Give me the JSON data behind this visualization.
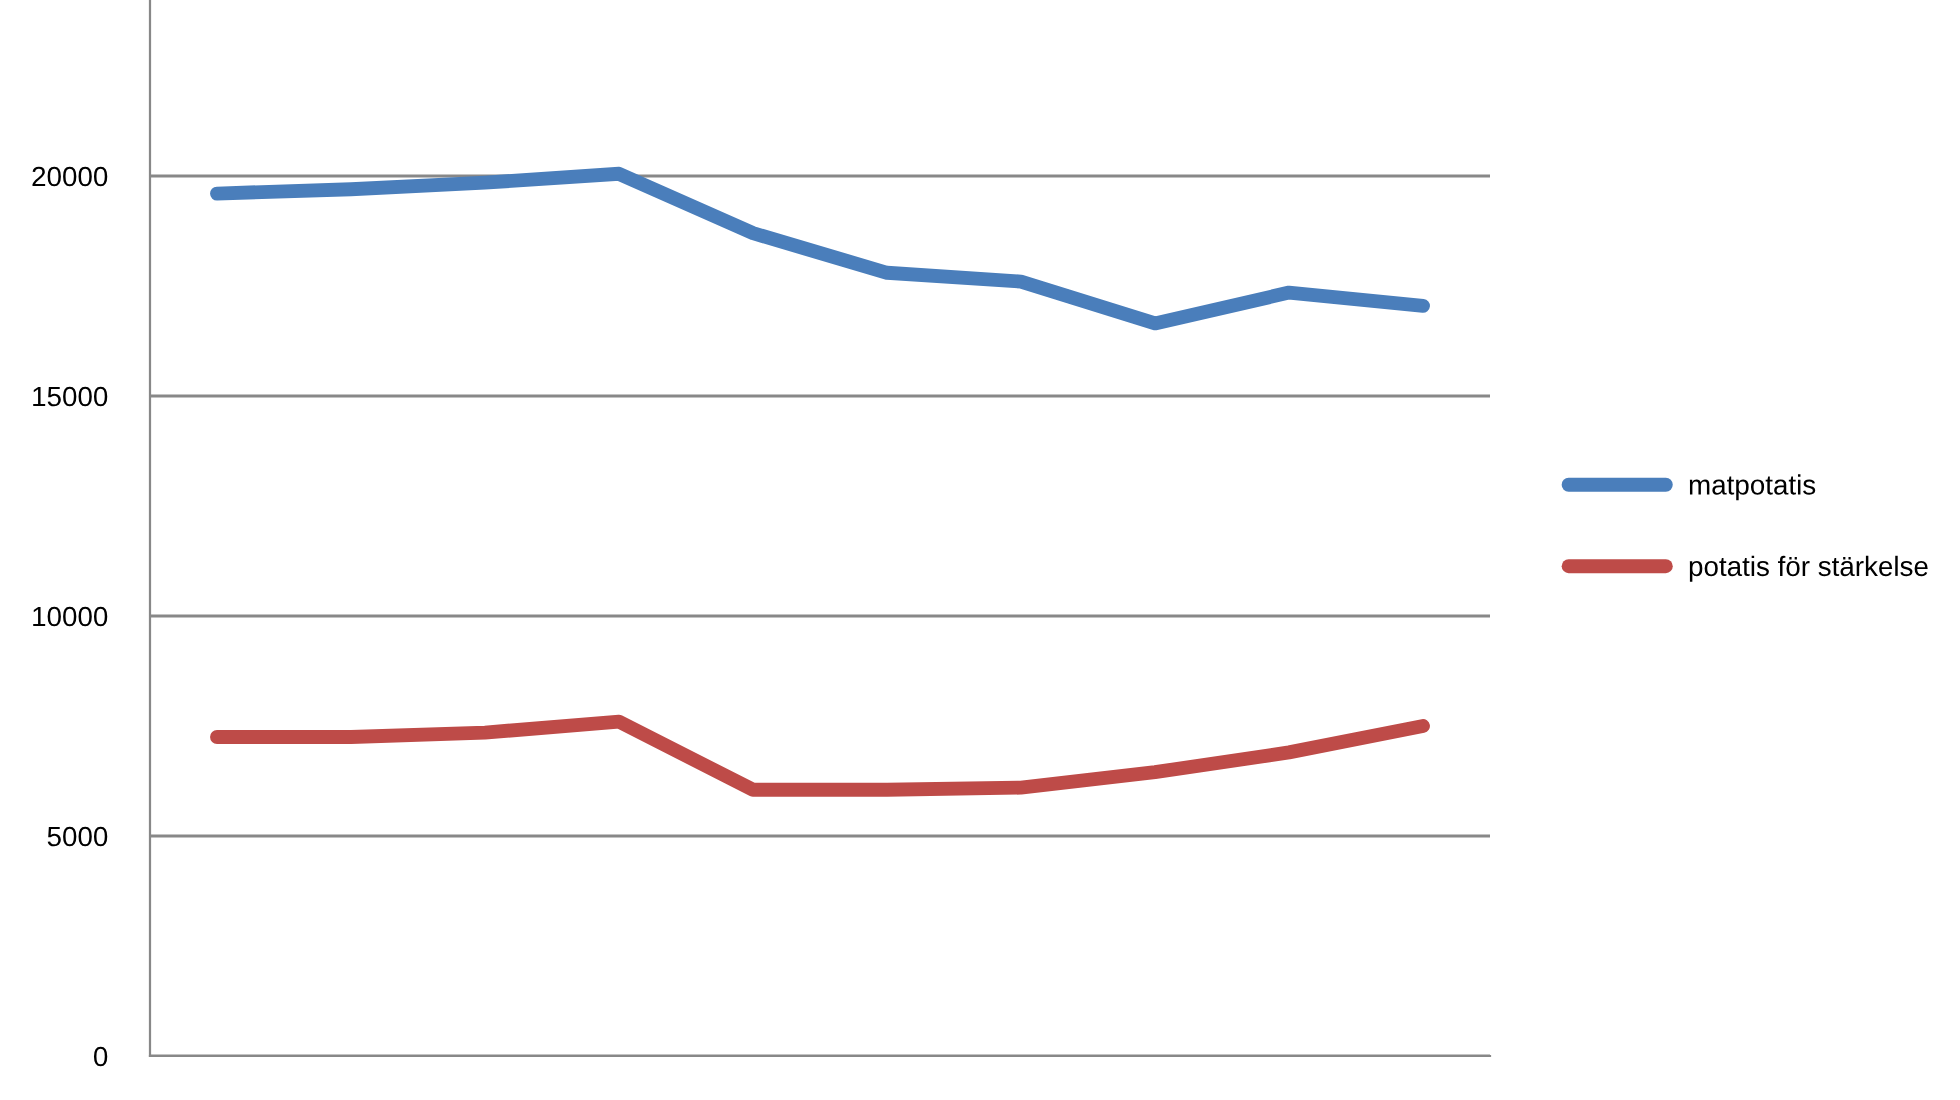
{
  "chart_data": {
    "type": "line",
    "categories": [
      null,
      null,
      null,
      null,
      null,
      null,
      null,
      null,
      null,
      null
    ],
    "series": [
      {
        "name": "matpotatis",
        "color": "#4a7ebb",
        "values": [
          19600,
          19700,
          19850,
          20050,
          18700,
          17800,
          17600,
          16650,
          17350,
          17050
        ]
      },
      {
        "name": "potatis för stärkelse",
        "color": "#be4b48",
        "values": [
          7250,
          7250,
          7350,
          7600,
          6050,
          6050,
          6100,
          6450,
          6900,
          7500
        ]
      }
    ],
    "ylim": [
      0,
      24000
    ],
    "yticks": [
      0,
      5000,
      10000,
      15000,
      20000
    ],
    "grid": "y",
    "legend": "right",
    "marker": "none",
    "line_style": "solid"
  }
}
